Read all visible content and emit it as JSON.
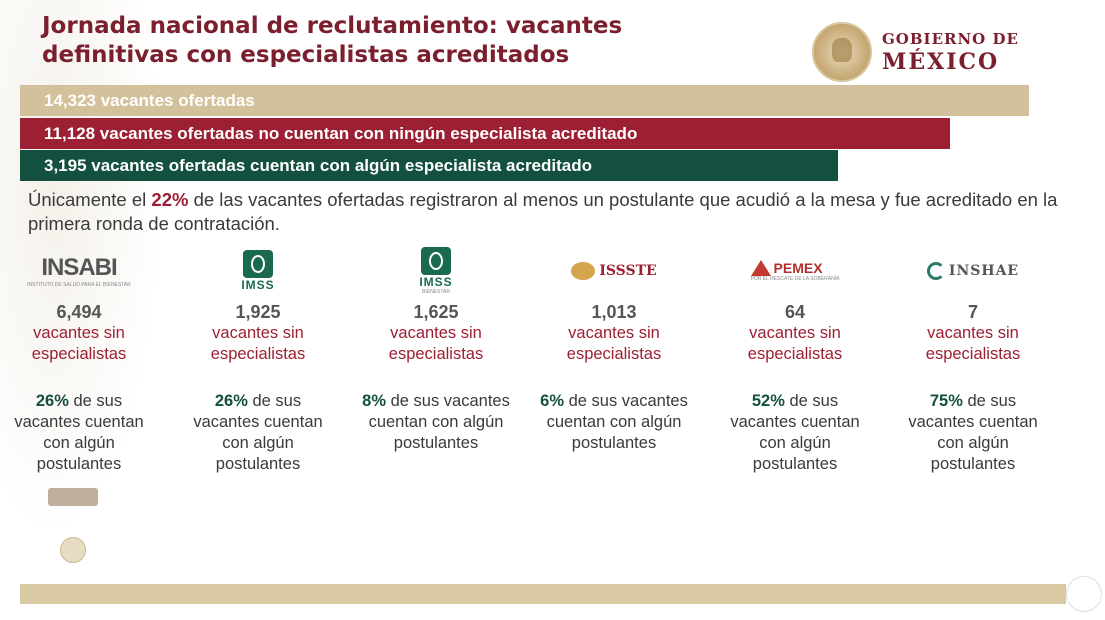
{
  "title": "Jornada nacional de reclutamiento: vacantes definitivas con especialistas acreditados",
  "brand": {
    "line1": "GOBIERNO DE",
    "line2": "MÉXICO"
  },
  "bars": [
    "14,323 vacantes ofertadas",
    "11,128 vacantes ofertadas no cuentan con ningún especialista acreditado",
    "3,195 vacantes ofertadas cuentan con algún especialista acreditado"
  ],
  "summary": {
    "before": "Únicamente  el ",
    "pct": "22%",
    "after": " de las vacantes ofertadas registraron al menos un postulante que acudió a la mesa y fue acreditado en la primera ronda de contratación."
  },
  "sub_label": "vacantes sin especialistas",
  "pct_suffix": " de sus vacantes cuentan con algún postulantes",
  "institutions": [
    {
      "name": "INSABI",
      "caption": "INSTITUTO DE SALUD PARA EL BIENESTAR",
      "count": "6,494",
      "pct": "26%"
    },
    {
      "name": "IMSS",
      "caption": "",
      "count": "1,925",
      "pct": "26%"
    },
    {
      "name": "IMSS",
      "caption": "BIENESTAR",
      "count": "1,625",
      "pct": "8%"
    },
    {
      "name": "ISSSTE",
      "caption": "",
      "count": "1,013",
      "pct": "6%"
    },
    {
      "name": "PEMEX",
      "caption": "POR EL RESCATE DE LA SOBERANÍA",
      "count": "64",
      "pct": "52%"
    },
    {
      "name": "INSHAE",
      "caption": "",
      "count": "7",
      "pct": "75%"
    }
  ],
  "colors": {
    "guinda": "#9c1f33",
    "green": "#13503f",
    "gold": "#d3c19b"
  }
}
